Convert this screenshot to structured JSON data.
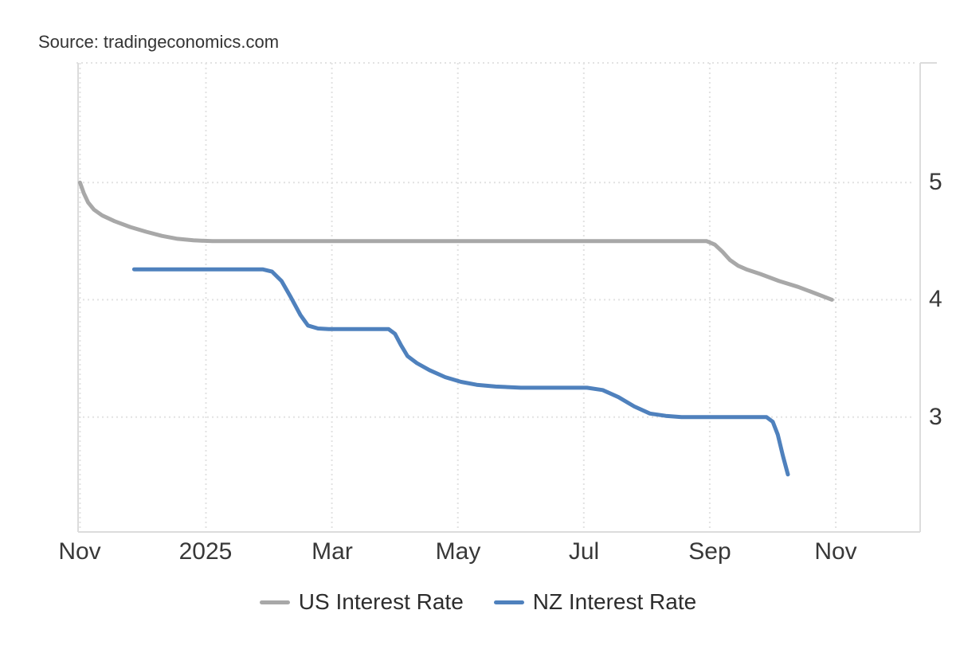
{
  "source_label": "Source: tradingeconomics.com",
  "chart_data": {
    "type": "line",
    "title": "",
    "xlabel": "",
    "ylabel": "",
    "x_unit_note": "months after the first Nov tick (Nov 2024 .. Nov 2025)",
    "xlim_months": [
      -0.03,
      13.34
    ],
    "ylim": [
      2.02,
      6.02
    ],
    "grid": "dotted",
    "legend_position": "bottom-center",
    "x_ticks": [
      {
        "m": 0,
        "label": "Nov"
      },
      {
        "m": 2,
        "label": "2025"
      },
      {
        "m": 4,
        "label": "Mar"
      },
      {
        "m": 6,
        "label": "May"
      },
      {
        "m": 8,
        "label": "Jul"
      },
      {
        "m": 10,
        "label": "Sep"
      },
      {
        "m": 12,
        "label": "Nov"
      }
    ],
    "y_ticks": [
      {
        "v": 5,
        "label": "5"
      },
      {
        "v": 4,
        "label": "4"
      },
      {
        "v": 3,
        "label": "3"
      }
    ],
    "series": [
      {
        "name": "US Interest Rate",
        "color": "#a8a8a8",
        "step_levels": [
          5.0,
          4.75,
          4.5,
          4.25,
          4.0
        ],
        "points": [
          [
            0,
            5.0
          ],
          [
            0.06,
            4.91
          ],
          [
            0.13,
            4.83
          ],
          [
            0.22,
            4.77
          ],
          [
            0.35,
            4.72
          ],
          [
            0.55,
            4.67
          ],
          [
            0.8,
            4.62
          ],
          [
            1.05,
            4.58
          ],
          [
            1.3,
            4.545
          ],
          [
            1.55,
            4.52
          ],
          [
            1.8,
            4.507
          ],
          [
            2.1,
            4.5
          ],
          [
            9.95,
            4.5
          ],
          [
            10.08,
            4.47
          ],
          [
            10.2,
            4.41
          ],
          [
            10.32,
            4.34
          ],
          [
            10.45,
            4.29
          ],
          [
            10.58,
            4.26
          ],
          [
            10.8,
            4.22
          ],
          [
            11.1,
            4.16
          ],
          [
            11.4,
            4.11
          ],
          [
            11.7,
            4.05
          ],
          [
            11.94,
            4.0
          ]
        ]
      },
      {
        "name": "NZ Interest Rate",
        "color": "#4f81bd",
        "step_levels": [
          4.25,
          3.75,
          3.5,
          3.25,
          3.0,
          2.5
        ],
        "points": [
          [
            0.86,
            4.26
          ],
          [
            2.9,
            4.26
          ],
          [
            3.05,
            4.24
          ],
          [
            3.2,
            4.16
          ],
          [
            3.35,
            4.02
          ],
          [
            3.5,
            3.87
          ],
          [
            3.62,
            3.78
          ],
          [
            3.78,
            3.755
          ],
          [
            3.95,
            3.75
          ],
          [
            4.9,
            3.75
          ],
          [
            5.0,
            3.71
          ],
          [
            5.1,
            3.61
          ],
          [
            5.2,
            3.52
          ],
          [
            5.35,
            3.46
          ],
          [
            5.55,
            3.4
          ],
          [
            5.8,
            3.34
          ],
          [
            6.05,
            3.3
          ],
          [
            6.3,
            3.275
          ],
          [
            6.6,
            3.26
          ],
          [
            7.0,
            3.25
          ],
          [
            8.05,
            3.25
          ],
          [
            8.3,
            3.23
          ],
          [
            8.55,
            3.17
          ],
          [
            8.8,
            3.09
          ],
          [
            9.05,
            3.03
          ],
          [
            9.3,
            3.01
          ],
          [
            9.55,
            3.0
          ],
          [
            10.9,
            3.0
          ],
          [
            11.0,
            2.96
          ],
          [
            11.08,
            2.85
          ],
          [
            11.16,
            2.67
          ],
          [
            11.24,
            2.51
          ]
        ]
      }
    ]
  }
}
